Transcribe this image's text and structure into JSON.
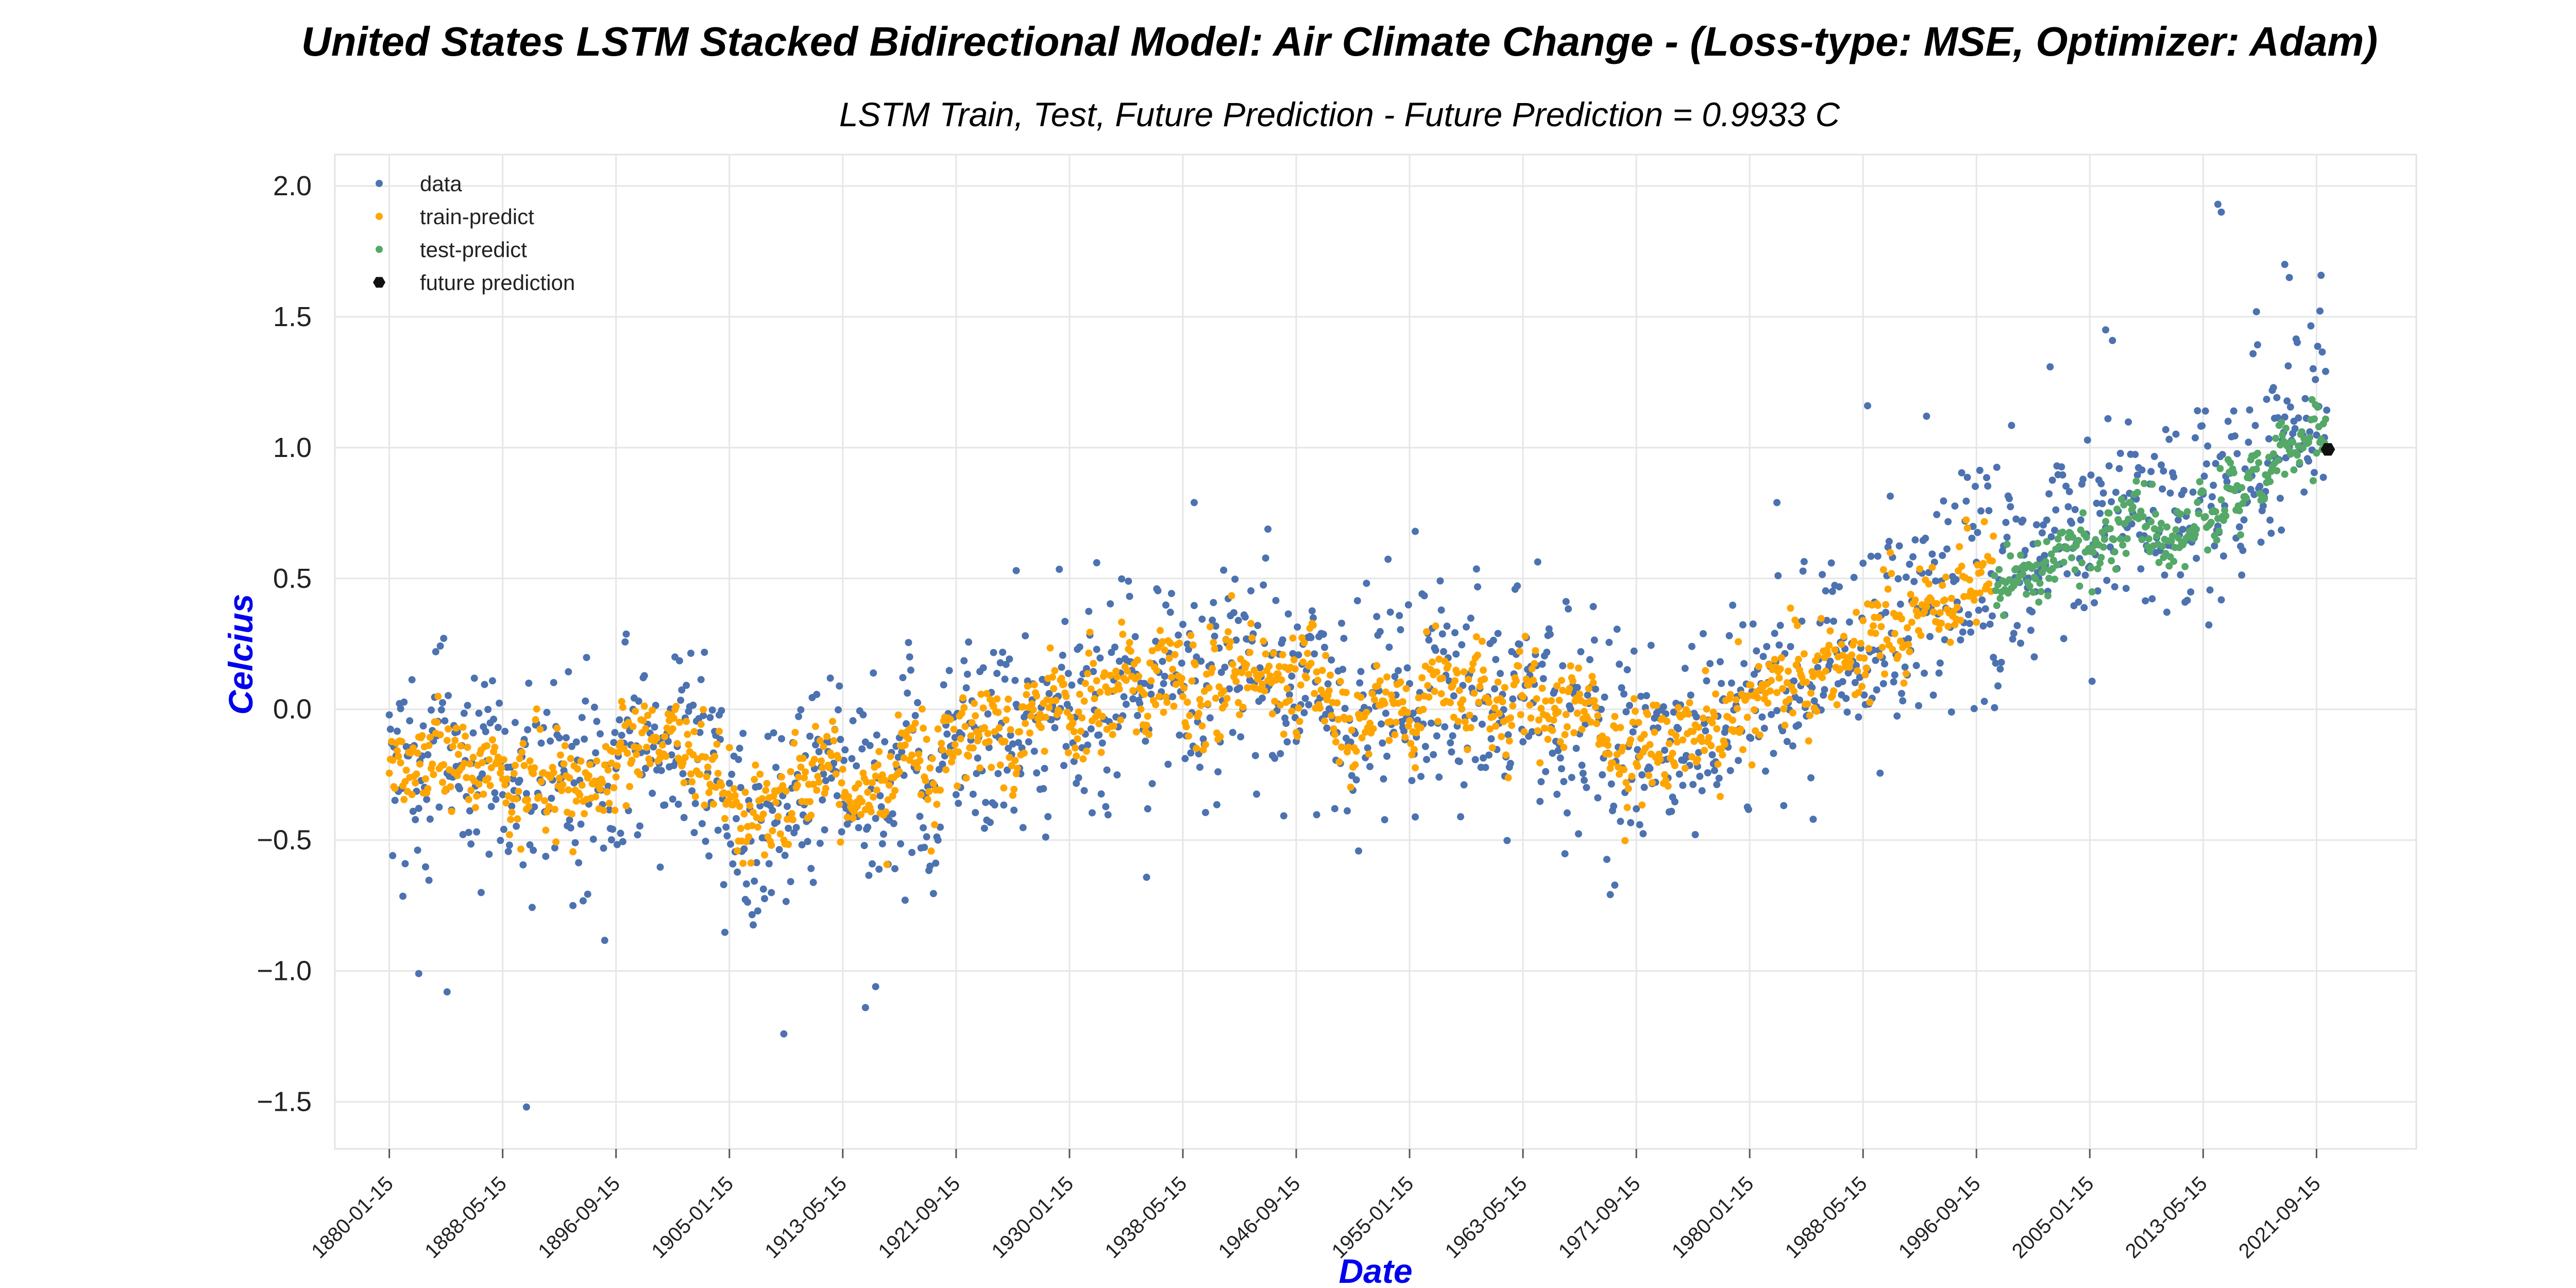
{
  "chart_data": {
    "type": "scatter",
    "title": "United States LSTM Stacked Bidirectional Model: Air Climate Change - (Loss-type: MSE, Optimizer: Adam)",
    "subtitle": "LSTM Train, Test, Future Prediction - Future Prediction = 0.9933 C",
    "xlabel": "Date",
    "ylabel": "Celcius",
    "xlim": [
      "1876-01-15",
      "2029-01-15"
    ],
    "ylim": [
      -1.68,
      2.12
    ],
    "yticks": [
      2.0,
      1.5,
      1.0,
      0.5,
      0.0,
      -0.5,
      -1.0,
      -1.5
    ],
    "ytick_labels": [
      "2.0",
      "1.5",
      "1.0",
      "0.5",
      "0.0",
      "−0.5",
      "−1.0",
      "−1.5"
    ],
    "xticks": [
      "1880-01-15",
      "1888-05-15",
      "1896-09-15",
      "1905-01-15",
      "1913-05-15",
      "1921-09-15",
      "1930-01-15",
      "1938-05-15",
      "1946-09-15",
      "1955-01-15",
      "1963-05-15",
      "1971-09-15",
      "1980-01-15",
      "1988-05-15",
      "1996-09-15",
      "2005-01-15",
      "2013-05-15",
      "2021-09-15"
    ],
    "grid": true,
    "legend_position": "top-left",
    "series": [
      {
        "name": "data",
        "color": "#4c72b0",
        "marker": "dot",
        "trend": [
          [
            "1880-01",
            -0.2
          ],
          [
            "1890-01",
            -0.26
          ],
          [
            "1900-01",
            -0.15
          ],
          [
            "1905-01",
            -0.38
          ],
          [
            "1910-01",
            -0.4
          ],
          [
            "1913-01",
            -0.3
          ],
          [
            "1920-01",
            -0.2
          ],
          [
            "1930-01",
            -0.03
          ],
          [
            "1938-01",
            0.18
          ],
          [
            "1945-01",
            0.1
          ],
          [
            "1950-01",
            0.02
          ],
          [
            "1955-01",
            0.0
          ],
          [
            "1960-01",
            0.1
          ],
          [
            "1965-01",
            -0.05
          ],
          [
            "1972-01",
            -0.12
          ],
          [
            "1976-01",
            -0.1
          ],
          [
            "1980-01",
            0.1
          ],
          [
            "1985-01",
            0.12
          ],
          [
            "1990-01",
            0.3
          ],
          [
            "1996-01",
            0.45
          ],
          [
            "2000-01",
            0.55
          ],
          [
            "2005-01",
            0.7
          ],
          [
            "2010-01",
            0.7
          ],
          [
            "2015-01",
            0.88
          ],
          [
            "2019-01",
            1.1
          ],
          [
            "2022-05",
            1.05
          ]
        ],
        "spread": 0.2,
        "extremes": [
          [
            "2014-06",
            1.93
          ],
          [
            "2014-09",
            1.9
          ],
          [
            "2019-05",
            1.7
          ],
          [
            "2019-09",
            1.65
          ],
          [
            "2006-03",
            1.45
          ],
          [
            "1890-02",
            -1.52
          ],
          [
            "1915-01",
            -1.14
          ],
          [
            "1915-10",
            -1.06
          ],
          [
            "1884-04",
            -1.08
          ],
          [
            "1882-03",
            -1.01
          ],
          [
            "1939-03",
            0.79
          ],
          [
            "1955-06",
            0.68
          ],
          [
            "1982-01",
            0.79
          ],
          [
            "1988-09",
            1.16
          ],
          [
            "1993-01",
            1.12
          ],
          [
            "1932-01",
            0.56
          ],
          [
            "1926-02",
            0.53
          ]
        ]
      },
      {
        "name": "train-predict",
        "color": "#ffa500",
        "marker": "dot",
        "range": [
          "1880-01-15",
          "1997-12-15"
        ],
        "spread": 0.08
      },
      {
        "name": "test-predict",
        "color": "#55a868",
        "marker": "dot",
        "range": [
          "1998-01-15",
          "2022-06-15"
        ],
        "spread": 0.06
      },
      {
        "name": "future prediction",
        "color": "#111111",
        "marker": "hexagon",
        "points": [
          {
            "x": "2022-07-15",
            "y": 0.9933
          }
        ]
      }
    ]
  }
}
